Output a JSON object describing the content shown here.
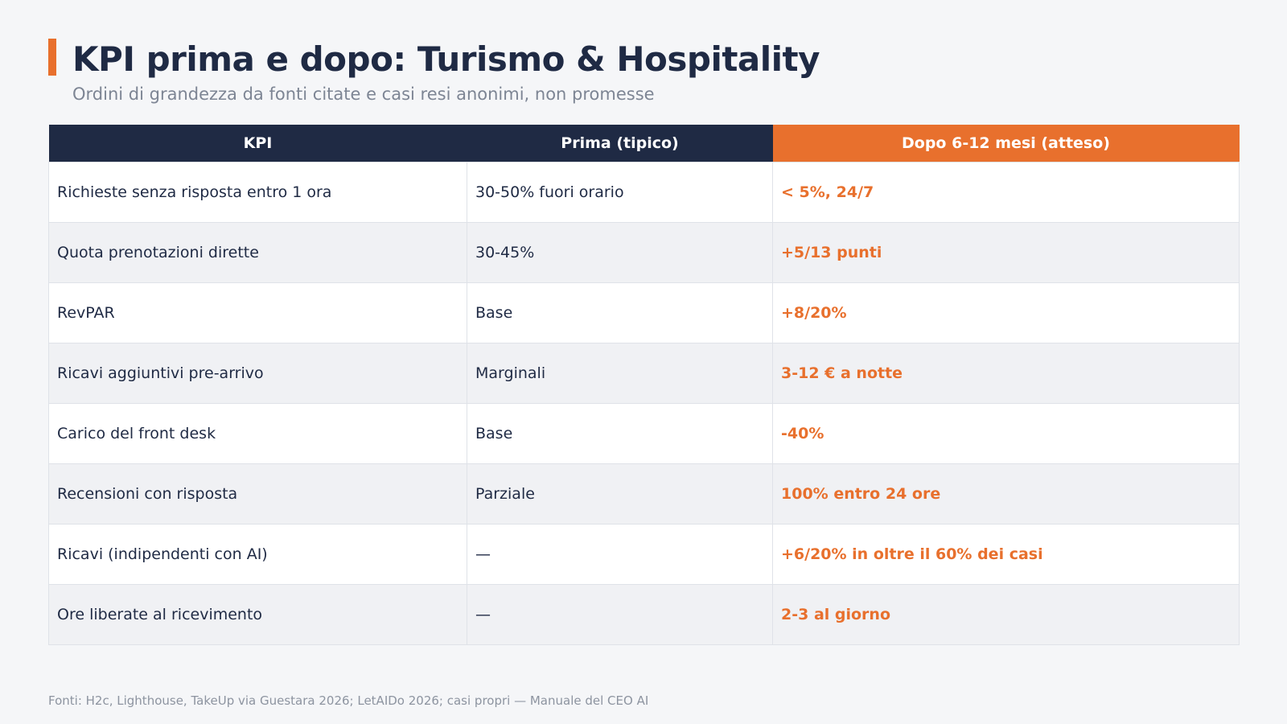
{
  "title": "KPI prima e dopo: Turismo & Hospitality",
  "subtitle": "Ordini di grandezza da fonti citate e casi resi anonimi, non promesse",
  "accent_color": "#e8702d",
  "header_color": "#1f2a44",
  "table": {
    "headers": [
      "KPI",
      "Prima (tipico)",
      "Dopo 6-12 mesi (atteso)"
    ],
    "rows": [
      {
        "kpi": "Richieste senza risposta entro 1 ora",
        "before": "30-50% fuori orario",
        "after": "< 5%, 24/7"
      },
      {
        "kpi": "Quota prenotazioni dirette",
        "before": "30-45%",
        "after": "+5/13 punti"
      },
      {
        "kpi": "RevPAR",
        "before": "Base",
        "after": "+8/20%"
      },
      {
        "kpi": "Ricavi aggiuntivi pre-arrivo",
        "before": "Marginali",
        "after": "3-12 € a notte"
      },
      {
        "kpi": "Carico del front desk",
        "before": "Base",
        "after": "-40%"
      },
      {
        "kpi": "Recensioni con risposta",
        "before": "Parziale",
        "after": "100% entro 24 ore"
      },
      {
        "kpi": "Ricavi (indipendenti con AI)",
        "before": "—",
        "after": "+6/20% in oltre il 60% dei casi"
      },
      {
        "kpi": "Ore liberate al ricevimento",
        "before": "—",
        "after": "2-3 al giorno"
      }
    ]
  },
  "footer": "Fonti: H2c, Lighthouse, TakeUp via Guestara 2026; LetAIDo 2026; casi propri — Manuale del CEO AI"
}
